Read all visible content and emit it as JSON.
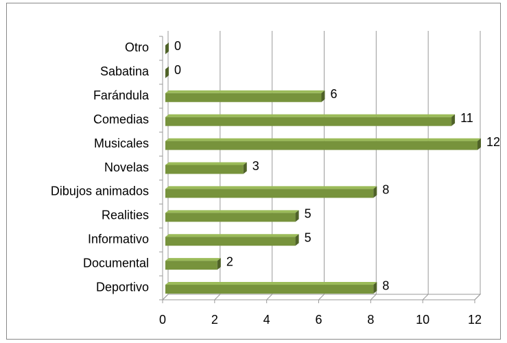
{
  "chart_data": {
    "type": "bar",
    "orientation": "horizontal",
    "categories": [
      "Otro",
      "Sabatina",
      "Farándula",
      "Comedias",
      "Musicales",
      "Novelas",
      "Dibujos animados",
      "Realities",
      "Informativo",
      "Documental",
      "Deportivo"
    ],
    "values": [
      0,
      0,
      6,
      11,
      12,
      3,
      8,
      5,
      5,
      2,
      8
    ],
    "color": "#77933c",
    "xlim": [
      0,
      12
    ],
    "xticks": [
      0,
      2,
      4,
      6,
      8,
      10,
      12
    ],
    "grid": true
  }
}
